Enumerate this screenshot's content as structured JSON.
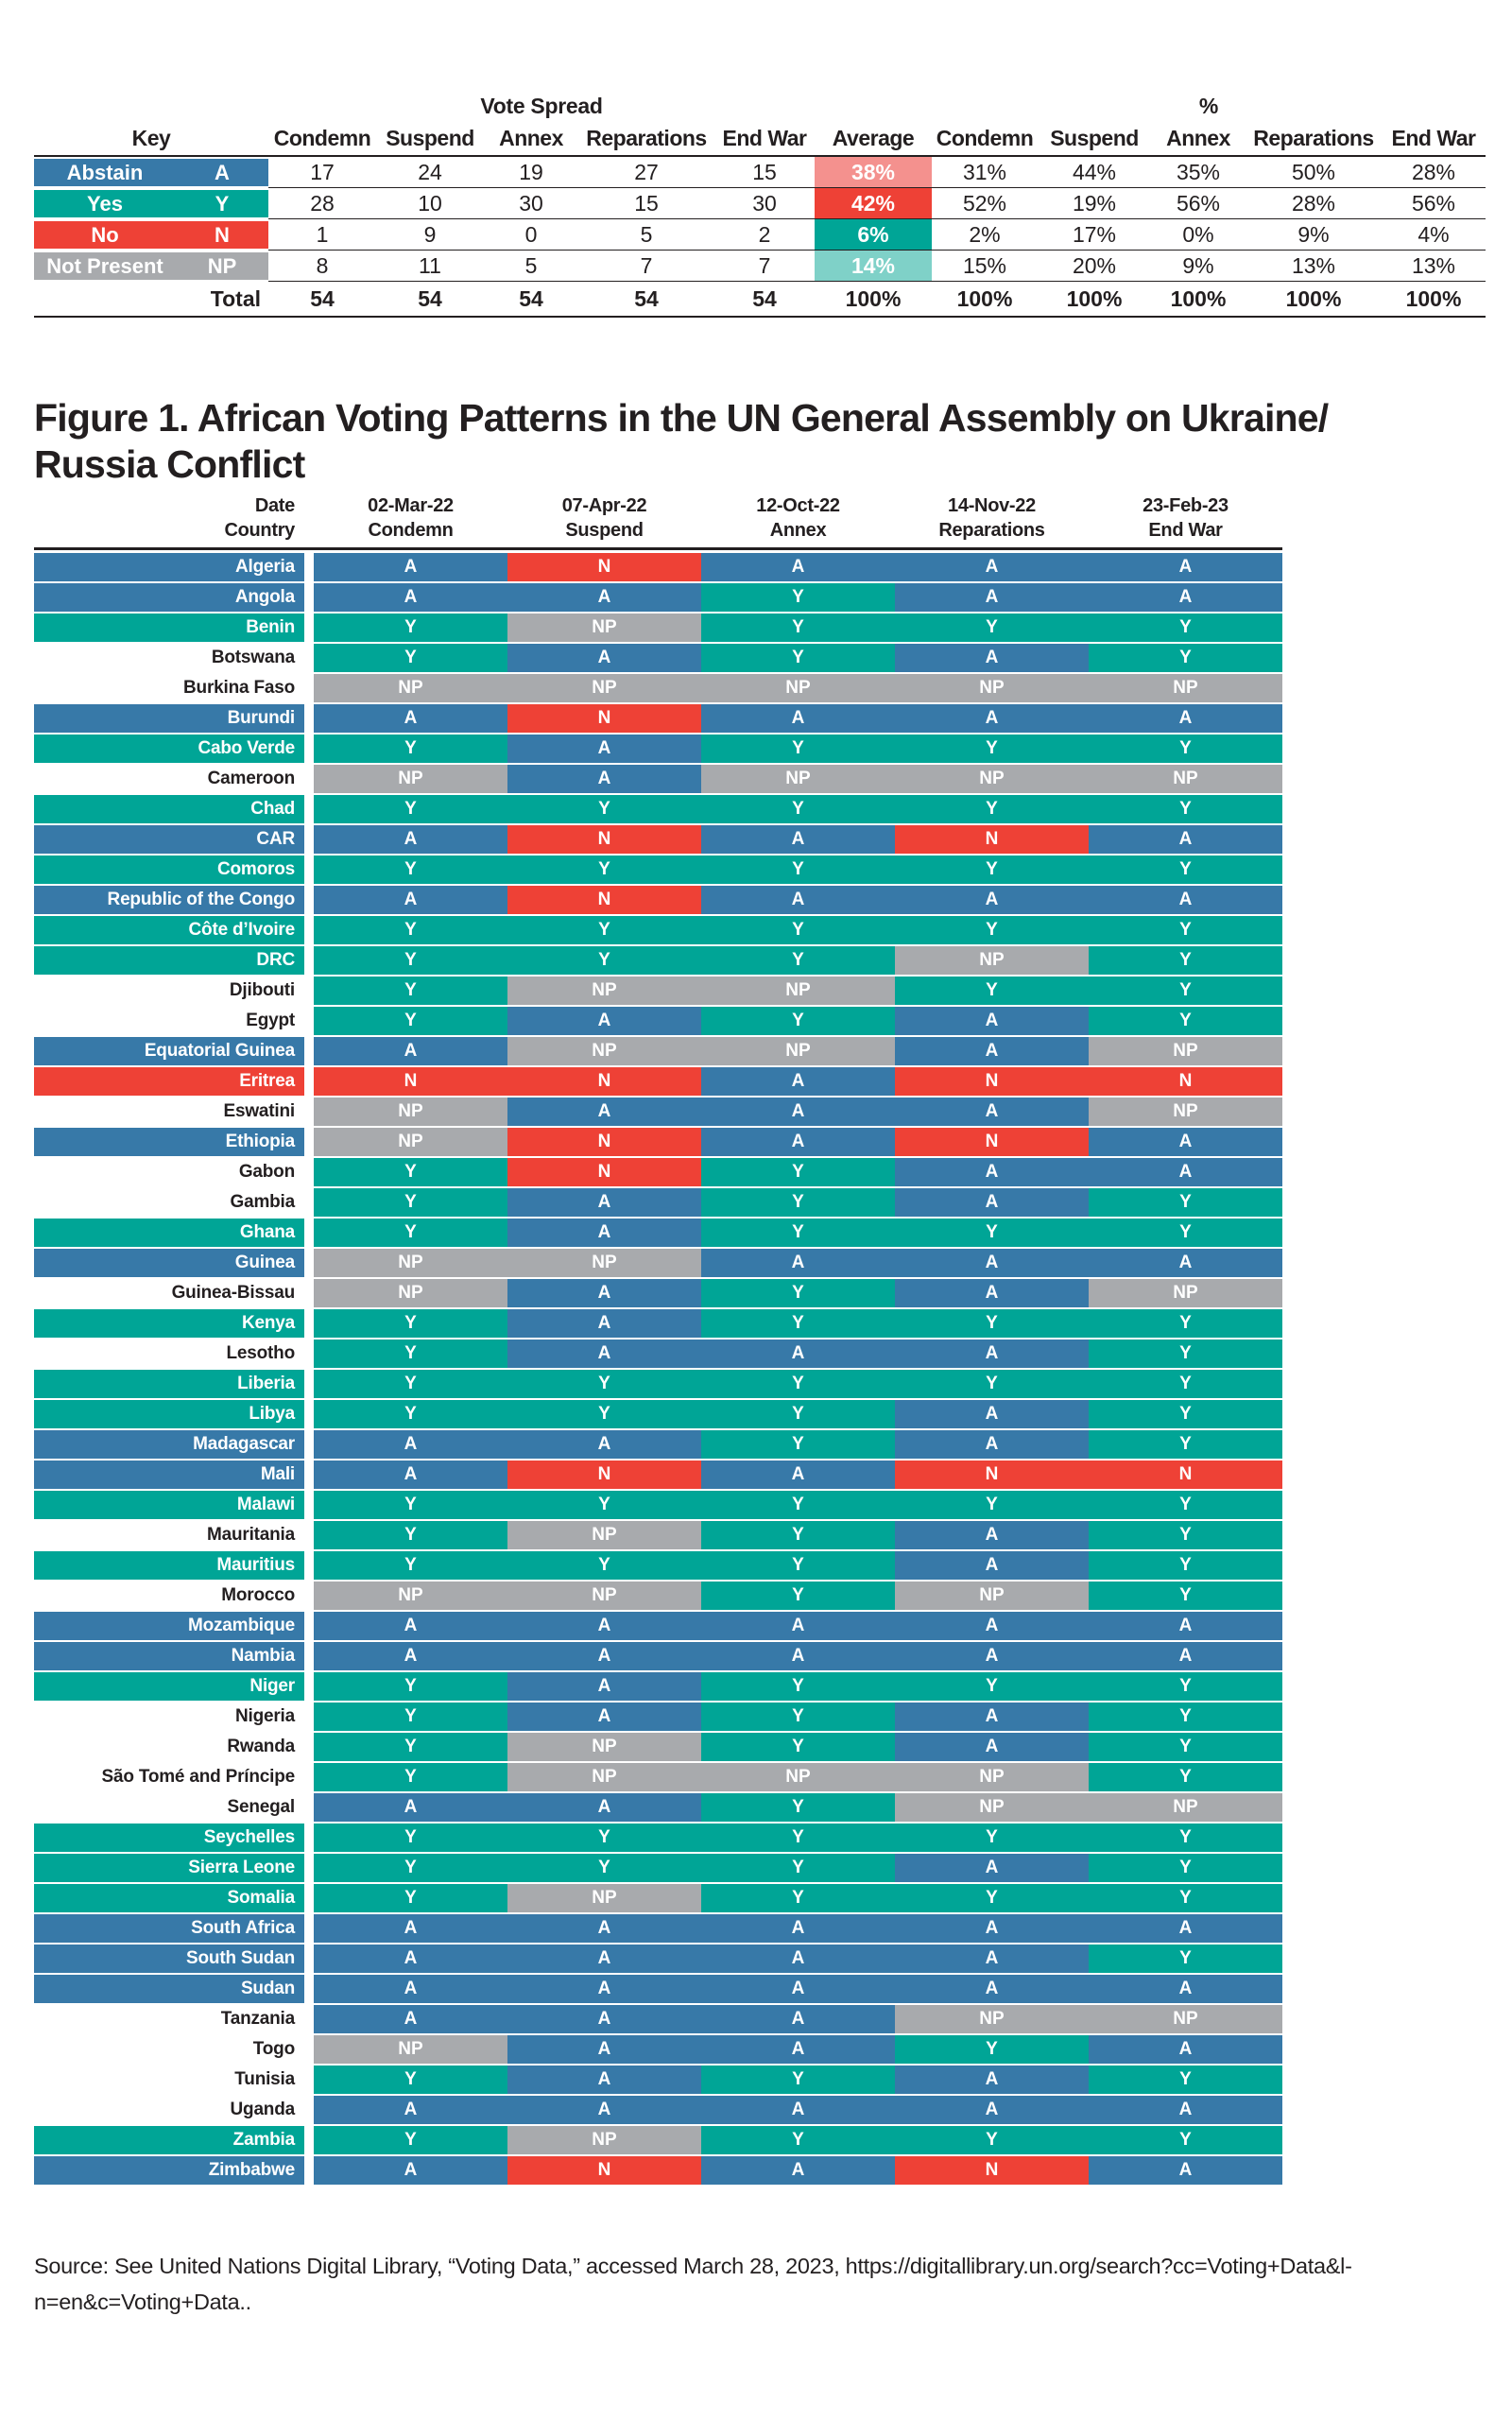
{
  "colors": {
    "abstain": "#3779A8",
    "yes": "#00A596",
    "no": "#EE4136",
    "not_present": "#A8AAAD",
    "avg_abstain": "#F4918E",
    "avg_yes": "#EE4136",
    "avg_no": "#00A596",
    "avg_not_present": "#7FD1C8",
    "ink": "#231F20"
  },
  "key_table": {
    "group_header_vote_spread": "Vote Spread",
    "group_header_percent": "%",
    "key_label": "Key",
    "count_columns": [
      "Condemn",
      "Suspend",
      "Annex",
      "Reparations",
      "End War"
    ],
    "average_label": "Average",
    "percent_columns": [
      "Condemn",
      "Suspend",
      "Annex",
      "Reparations",
      "End War"
    ]
  },
  "figure": {
    "title_lines": [
      "Figure 1. African Voting Patterns in the UN General Assembly on Ukraine/",
      "Russia Conflict"
    ],
    "header_date_label": "Date",
    "header_country_label": "Country",
    "columns": [
      {
        "date": "02-Mar-22",
        "resolution": "Condemn"
      },
      {
        "date": "07-Apr-22",
        "resolution": "Suspend"
      },
      {
        "date": "12-Oct-22",
        "resolution": "Annex"
      },
      {
        "date": "14-Nov-22",
        "resolution": "Reparations"
      },
      {
        "date": "23-Feb-23",
        "resolution": "End War"
      }
    ]
  },
  "chart_data": [
    {
      "type": "table",
      "title": "Vote Spread and % by vote type",
      "columns": [
        "Key",
        "Code",
        "Condemn",
        "Suspend",
        "Annex",
        "Reparations",
        "End War",
        "Average",
        "Condemn %",
        "Suspend %",
        "Annex %",
        "Reparations %",
        "End War %"
      ],
      "rows": [
        {
          "label": "Abstain",
          "code": "A",
          "key_color": "#3779A8",
          "counts": [
            17,
            24,
            19,
            27,
            15
          ],
          "average": "38%",
          "average_color": "#F4918E",
          "percents": [
            "31%",
            "44%",
            "35%",
            "50%",
            "28%"
          ]
        },
        {
          "label": "Yes",
          "code": "Y",
          "key_color": "#00A596",
          "counts": [
            28,
            10,
            30,
            15,
            30
          ],
          "average": "42%",
          "average_color": "#EE4136",
          "percents": [
            "52%",
            "19%",
            "56%",
            "28%",
            "56%"
          ]
        },
        {
          "label": "No",
          "code": "N",
          "key_color": "#EE4136",
          "counts": [
            1,
            9,
            0,
            5,
            2
          ],
          "average": "6%",
          "average_color": "#00A596",
          "percents": [
            "2%",
            "17%",
            "0%",
            "9%",
            "4%"
          ]
        },
        {
          "label": "Not Present",
          "code": "NP",
          "key_color": "#A8AAAD",
          "counts": [
            8,
            11,
            5,
            7,
            7
          ],
          "average": "14%",
          "average_color": "#7FD1C8",
          "percents": [
            "15%",
            "20%",
            "9%",
            "13%",
            "13%"
          ]
        }
      ],
      "total_row": {
        "label": "Total",
        "counts": [
          54,
          54,
          54,
          54,
          54
        ],
        "average": "100%",
        "percents": [
          "100%",
          "100%",
          "100%",
          "100%",
          "100%"
        ]
      }
    },
    {
      "type": "heatmap",
      "title": "Figure 1. African Voting Patterns in the UN General Assembly on Ukraine/Russia Conflict",
      "x": [
        "02-Mar-22 Condemn",
        "07-Apr-22 Suspend",
        "12-Oct-22 Annex",
        "14-Nov-22 Reparations",
        "23-Feb-23 End War"
      ],
      "legend": {
        "A": "Abstain",
        "Y": "Yes",
        "N": "No",
        "NP": "Not Present"
      },
      "rows": [
        {
          "country": "Algeria",
          "label_color": "blue",
          "votes": [
            "A",
            "N",
            "A",
            "A",
            "A"
          ]
        },
        {
          "country": "Angola",
          "label_color": "blue",
          "votes": [
            "A",
            "A",
            "Y",
            "A",
            "A"
          ]
        },
        {
          "country": "Benin",
          "label_color": "teal",
          "votes": [
            "Y",
            "NP",
            "Y",
            "Y",
            "Y"
          ]
        },
        {
          "country": "Botswana",
          "label_color": "white",
          "votes": [
            "Y",
            "A",
            "Y",
            "A",
            "Y"
          ]
        },
        {
          "country": "Burkina Faso",
          "label_color": "white",
          "votes": [
            "NP",
            "NP",
            "NP",
            "NP",
            "NP"
          ]
        },
        {
          "country": "Burundi",
          "label_color": "blue",
          "votes": [
            "A",
            "N",
            "A",
            "A",
            "A"
          ]
        },
        {
          "country": "Cabo Verde",
          "label_color": "teal",
          "votes": [
            "Y",
            "A",
            "Y",
            "Y",
            "Y"
          ]
        },
        {
          "country": "Cameroon",
          "label_color": "white",
          "votes": [
            "NP",
            "A",
            "NP",
            "NP",
            "NP"
          ]
        },
        {
          "country": "Chad",
          "label_color": "teal",
          "votes": [
            "Y",
            "Y",
            "Y",
            "Y",
            "Y"
          ]
        },
        {
          "country": "CAR",
          "label_color": "blue",
          "votes": [
            "A",
            "N",
            "A",
            "N",
            "A"
          ]
        },
        {
          "country": "Comoros",
          "label_color": "teal",
          "votes": [
            "Y",
            "Y",
            "Y",
            "Y",
            "Y"
          ]
        },
        {
          "country": "Republic of the Congo",
          "label_color": "blue",
          "votes": [
            "A",
            "N",
            "A",
            "A",
            "A"
          ]
        },
        {
          "country": "Côte d’Ivoire",
          "label_color": "teal",
          "votes": [
            "Y",
            "Y",
            "Y",
            "Y",
            "Y"
          ]
        },
        {
          "country": "DRC",
          "label_color": "teal",
          "votes": [
            "Y",
            "Y",
            "Y",
            "NP",
            "Y"
          ]
        },
        {
          "country": "Djibouti",
          "label_color": "white",
          "votes": [
            "Y",
            "NP",
            "NP",
            "Y",
            "Y"
          ]
        },
        {
          "country": "Egypt",
          "label_color": "white",
          "votes": [
            "Y",
            "A",
            "Y",
            "A",
            "Y"
          ]
        },
        {
          "country": "Equatorial Guinea",
          "label_color": "blue",
          "votes": [
            "A",
            "NP",
            "NP",
            "A",
            "NP"
          ]
        },
        {
          "country": "Eritrea",
          "label_color": "red",
          "votes": [
            "N",
            "N",
            "A",
            "N",
            "N"
          ]
        },
        {
          "country": "Eswatini",
          "label_color": "white",
          "votes": [
            "NP",
            "A",
            "A",
            "A",
            "NP"
          ]
        },
        {
          "country": "Ethiopia",
          "label_color": "blue",
          "votes": [
            "NP",
            "N",
            "A",
            "N",
            "A"
          ]
        },
        {
          "country": "Gabon",
          "label_color": "white",
          "votes": [
            "Y",
            "N",
            "Y",
            "A",
            "A"
          ]
        },
        {
          "country": "Gambia",
          "label_color": "white",
          "votes": [
            "Y",
            "A",
            "Y",
            "A",
            "Y"
          ]
        },
        {
          "country": "Ghana",
          "label_color": "teal",
          "votes": [
            "Y",
            "A",
            "Y",
            "Y",
            "Y"
          ]
        },
        {
          "country": "Guinea",
          "label_color": "blue",
          "votes": [
            "NP",
            "NP",
            "A",
            "A",
            "A"
          ]
        },
        {
          "country": "Guinea-Bissau",
          "label_color": "white",
          "votes": [
            "NP",
            "A",
            "Y",
            "A",
            "NP"
          ]
        },
        {
          "country": "Kenya",
          "label_color": "teal",
          "votes": [
            "Y",
            "A",
            "Y",
            "Y",
            "Y"
          ]
        },
        {
          "country": "Lesotho",
          "label_color": "white",
          "votes": [
            "Y",
            "A",
            "A",
            "A",
            "Y"
          ]
        },
        {
          "country": "Liberia",
          "label_color": "teal",
          "votes": [
            "Y",
            "Y",
            "Y",
            "Y",
            "Y"
          ]
        },
        {
          "country": "Libya",
          "label_color": "teal",
          "votes": [
            "Y",
            "Y",
            "Y",
            "A",
            "Y"
          ]
        },
        {
          "country": "Madagascar",
          "label_color": "blue",
          "votes": [
            "A",
            "A",
            "Y",
            "A",
            "Y"
          ]
        },
        {
          "country": "Mali",
          "label_color": "blue",
          "votes": [
            "A",
            "N",
            "A",
            "N",
            "N"
          ]
        },
        {
          "country": "Malawi",
          "label_color": "teal",
          "votes": [
            "Y",
            "Y",
            "Y",
            "Y",
            "Y"
          ]
        },
        {
          "country": "Mauritania",
          "label_color": "white",
          "votes": [
            "Y",
            "NP",
            "Y",
            "A",
            "Y"
          ]
        },
        {
          "country": "Mauritius",
          "label_color": "teal",
          "votes": [
            "Y",
            "Y",
            "Y",
            "A",
            "Y"
          ]
        },
        {
          "country": "Morocco",
          "label_color": "white",
          "votes": [
            "NP",
            "NP",
            "Y",
            "NP",
            "Y"
          ]
        },
        {
          "country": "Mozambique",
          "label_color": "blue",
          "votes": [
            "A",
            "A",
            "A",
            "A",
            "A"
          ]
        },
        {
          "country": "Nambia",
          "label_color": "blue",
          "votes": [
            "A",
            "A",
            "A",
            "A",
            "A"
          ]
        },
        {
          "country": "Niger",
          "label_color": "teal",
          "votes": [
            "Y",
            "A",
            "Y",
            "Y",
            "Y"
          ]
        },
        {
          "country": "Nigeria",
          "label_color": "white",
          "votes": [
            "Y",
            "A",
            "Y",
            "A",
            "Y"
          ]
        },
        {
          "country": "Rwanda",
          "label_color": "white",
          "votes": [
            "Y",
            "NP",
            "Y",
            "A",
            "Y"
          ]
        },
        {
          "country": "São Tomé and Príncipe",
          "label_color": "white",
          "votes": [
            "Y",
            "NP",
            "NP",
            "NP",
            "Y"
          ]
        },
        {
          "country": "Senegal",
          "label_color": "white",
          "votes": [
            "A",
            "A",
            "Y",
            "NP",
            "NP"
          ]
        },
        {
          "country": "Seychelles",
          "label_color": "teal",
          "votes": [
            "Y",
            "Y",
            "Y",
            "Y",
            "Y"
          ]
        },
        {
          "country": "Sierra Leone",
          "label_color": "teal",
          "votes": [
            "Y",
            "Y",
            "Y",
            "A",
            "Y"
          ]
        },
        {
          "country": "Somalia",
          "label_color": "teal",
          "votes": [
            "Y",
            "NP",
            "Y",
            "Y",
            "Y"
          ]
        },
        {
          "country": "South Africa",
          "label_color": "blue",
          "votes": [
            "A",
            "A",
            "A",
            "A",
            "A"
          ]
        },
        {
          "country": "South Sudan",
          "label_color": "blue",
          "votes": [
            "A",
            "A",
            "A",
            "A",
            "Y"
          ]
        },
        {
          "country": "Sudan",
          "label_color": "blue",
          "votes": [
            "A",
            "A",
            "A",
            "A",
            "A"
          ]
        },
        {
          "country": "Tanzania",
          "label_color": "white",
          "votes": [
            "A",
            "A",
            "A",
            "NP",
            "NP"
          ]
        },
        {
          "country": "Togo",
          "label_color": "white",
          "votes": [
            "NP",
            "A",
            "A",
            "Y",
            "A"
          ]
        },
        {
          "country": "Tunisia",
          "label_color": "white",
          "votes": [
            "Y",
            "A",
            "Y",
            "A",
            "Y"
          ]
        },
        {
          "country": "Uganda",
          "label_color": "white",
          "votes": [
            "A",
            "A",
            "A",
            "A",
            "A"
          ]
        },
        {
          "country": "Zambia",
          "label_color": "teal",
          "votes": [
            "Y",
            "NP",
            "Y",
            "Y",
            "Y"
          ]
        },
        {
          "country": "Zimbabwe",
          "label_color": "blue",
          "votes": [
            "A",
            "N",
            "A",
            "N",
            "A"
          ]
        }
      ]
    }
  ],
  "source": {
    "line1": "Source: See United Nations Digital Library, “Voting Data,” accessed March 28, 2023, https://digitallibrary.un.org/search?cc=Voting+Data&l-",
    "line2": "n=en&c=Voting+Data.."
  }
}
